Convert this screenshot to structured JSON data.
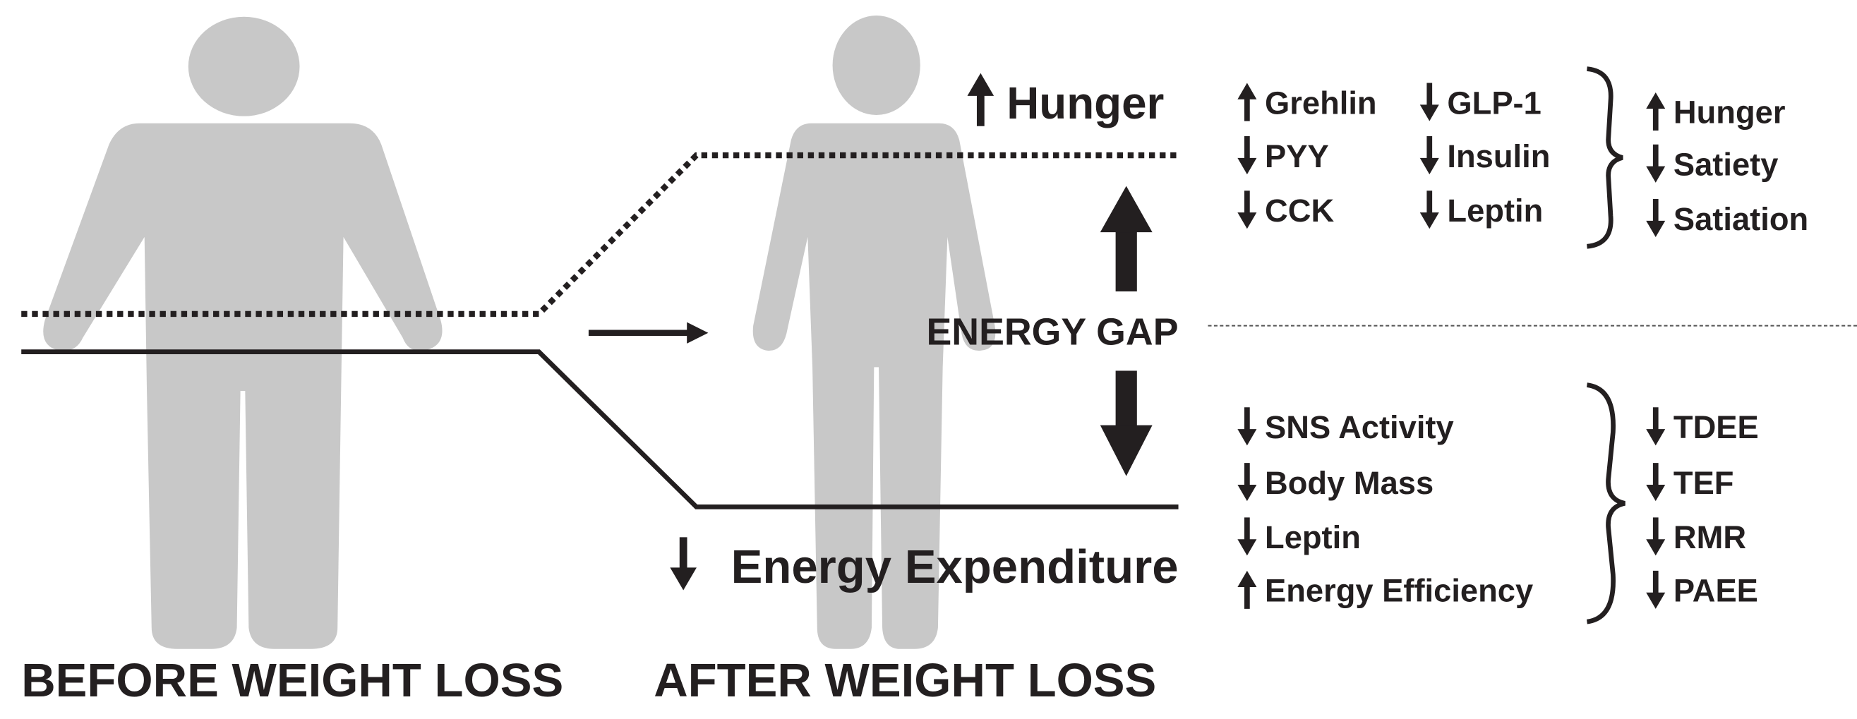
{
  "labels": {
    "hunger": "Hunger",
    "energy_gap": "ENERGY GAP",
    "energy_expenditure": "Energy Expenditure",
    "before": "BEFORE WEIGHT LOSS",
    "after": "AFTER WEIGHT LOSS"
  },
  "hunger_signals": {
    "hormones": [
      [
        "Grehlin",
        "PYY",
        "CCK"
      ],
      [
        "GLP-1",
        "Insulin",
        "Leptin"
      ]
    ],
    "effects": [
      "Hunger",
      "Satiety",
      "Satiation"
    ]
  },
  "expenditure_factors": {
    "factors": [
      "SNS Activity",
      "Body Mass",
      "Leptin",
      "Energy Efficiency"
    ],
    "effects": [
      "TDEE",
      "TEF",
      "RMR",
      "PAEE"
    ]
  }
}
